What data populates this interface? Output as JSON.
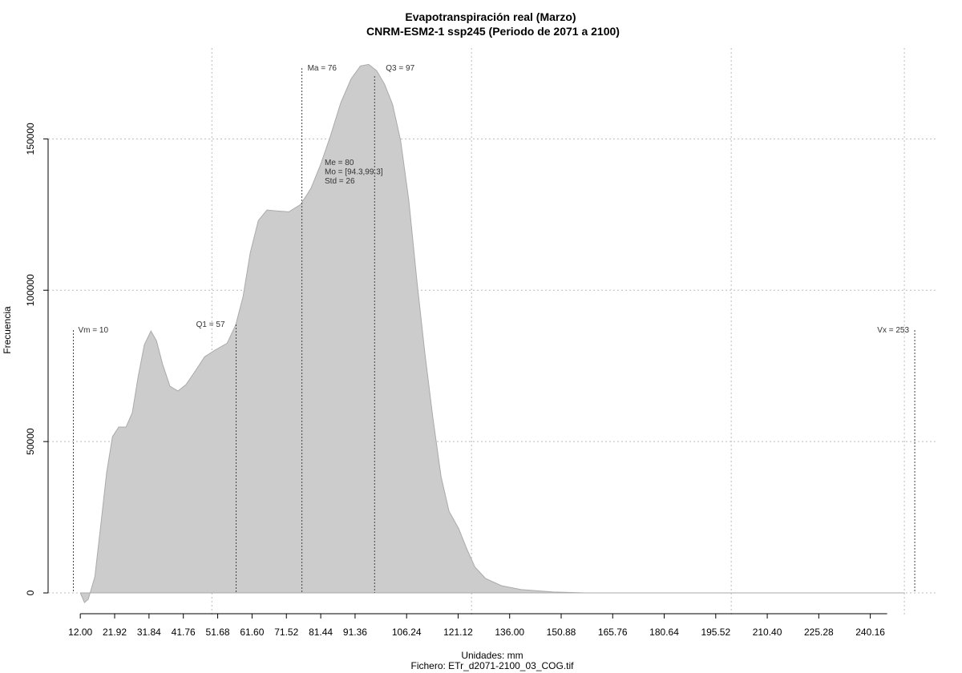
{
  "chart_data": {
    "type": "area",
    "title": "Evapotranspiración real (Marzo)",
    "subtitle": "CNRM-ESM2-1 ssp245 (Periodo de 2071 a 2100)",
    "xlabel": "Unidades: mm",
    "caption": "Fichero: ETr_d2071-2100_03_COG.tif",
    "ylabel": "Frecuencia",
    "color": "#cccccc",
    "x": [
      12,
      13.2,
      14.3,
      16.2,
      17.8,
      19.6,
      21.3,
      23.1,
      25.2,
      27.0,
      28.7,
      30.5,
      32.4,
      34.0,
      35.8,
      37.9,
      40.2,
      42.5,
      44.9,
      47.9,
      50.9,
      54.4,
      56.9,
      59.0,
      61.1,
      63.4,
      65.9,
      68.7,
      72.2,
      75.6,
      78.6,
      81.4,
      84.2,
      87.2,
      90.2,
      92.9,
      95.3,
      97.6,
      99.9,
      102.2,
      104.5,
      106.9,
      109.2,
      111.5,
      113.8,
      116.2,
      118.5,
      121.3,
      123.6,
      126.0,
      129.0,
      133.6,
      139.3,
      148.6,
      157.8,
      250
    ],
    "values": [
      0,
      -3200,
      -2100,
      5300,
      21200,
      39700,
      51600,
      54800,
      54800,
      59500,
      71400,
      82000,
      86500,
      83300,
      75400,
      68300,
      66700,
      68800,
      72800,
      78000,
      80200,
      82500,
      88600,
      97900,
      112400,
      123000,
      126500,
      126200,
      125900,
      128300,
      133600,
      141500,
      150800,
      161900,
      169800,
      174100,
      174600,
      172500,
      168000,
      161400,
      149500,
      129600,
      103200,
      79400,
      58200,
      38400,
      27000,
      21200,
      14600,
      8500,
      4800,
      2400,
      1100,
      300,
      0,
      0
    ],
    "xlim": [
      2.7,
      259.7
    ],
    "ylim": [
      -7400,
      180000
    ],
    "xticks": [
      {
        "value": 12,
        "label": "12.00"
      },
      21.92,
      31.84,
      41.76,
      51.68,
      {
        "value": 61.6,
        "label": "61.60"
      },
      71.52,
      81.44,
      91.36,
      106.24,
      121.12,
      {
        "value": 136,
        "label": "136.00"
      },
      150.88,
      165.76,
      180.64,
      195.52,
      {
        "value": 210.4,
        "label": "210.40"
      },
      225.28,
      240.16
    ],
    "yticks": [
      0,
      50000,
      100000,
      150000
    ],
    "xgrid": [
      50,
      125,
      200,
      250
    ],
    "grid": true,
    "annotations": [
      {
        "label": "Vm = 10",
        "x": 10
      },
      {
        "label": "Q1 = 57",
        "x": 57
      },
      {
        "label": "Ma = 76",
        "x": 76
      },
      {
        "label": "Q3 = 97",
        "x": 97
      },
      {
        "label": "Vx = 253",
        "x": 253
      }
    ],
    "stats": [
      "Me = 80",
      "Mo = [94.3,99.3]",
      "Std = 26"
    ]
  }
}
